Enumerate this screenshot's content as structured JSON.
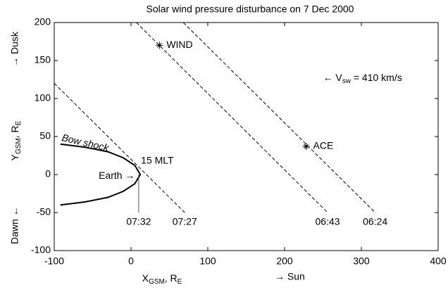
{
  "chart_data": {
    "type": "line",
    "title": "Solar wind pressure disturbance on 7 Dec 2000",
    "x_label": {
      "main": "X",
      "sub1": "GSM",
      "mid": ", R",
      "sub2": "E",
      "direction": "→ Sun"
    },
    "y_label": {
      "main": "Y",
      "sub1": "GSM",
      "mid": ", R",
      "sub2": "E",
      "positive": "→ Dusk",
      "negative": "Dawn ←"
    },
    "xlim": [
      -100,
      400
    ],
    "ylim": [
      -100,
      200
    ],
    "xticks": [
      -100,
      0,
      100,
      200,
      300,
      400
    ],
    "yticks": [
      -100,
      -50,
      0,
      50,
      100,
      150,
      200
    ],
    "series": [
      {
        "name": "Bow shock",
        "color": "#000000",
        "dash": false,
        "x": [
          -92,
          -60,
          -30,
          -10,
          5,
          12,
          5,
          -10,
          -30,
          -60,
          -92
        ],
        "values": [
          40,
          36,
          30,
          22,
          12,
          0,
          -12,
          -22,
          -30,
          -36,
          -40
        ]
      },
      {
        "name": "07:27",
        "color": "#000000",
        "dash": true,
        "x": [
          -100,
          70
        ],
        "values": [
          120,
          -50
        ]
      },
      {
        "name": "06:43",
        "color": "#000000",
        "dash": true,
        "x": [
          7,
          256
        ],
        "values": [
          200,
          -50
        ]
      },
      {
        "name": "06:24",
        "color": "#000000",
        "dash": true,
        "x": [
          68,
          318
        ],
        "values": [
          200,
          -50
        ]
      },
      {
        "name": "07:32",
        "color": "#555555",
        "dash": false,
        "x": [
          10,
          10
        ],
        "values": [
          0,
          -50
        ]
      }
    ],
    "points": [
      {
        "name": "WIND",
        "x": 37,
        "y": 170
      },
      {
        "name": "ACE",
        "x": 228,
        "y": 37
      }
    ],
    "annotations": {
      "mlt": "15 MLT",
      "earth": "Earth →",
      "velocity": {
        "main": "← V",
        "sub": "sw",
        "rest": " = 410 km/s"
      }
    }
  }
}
